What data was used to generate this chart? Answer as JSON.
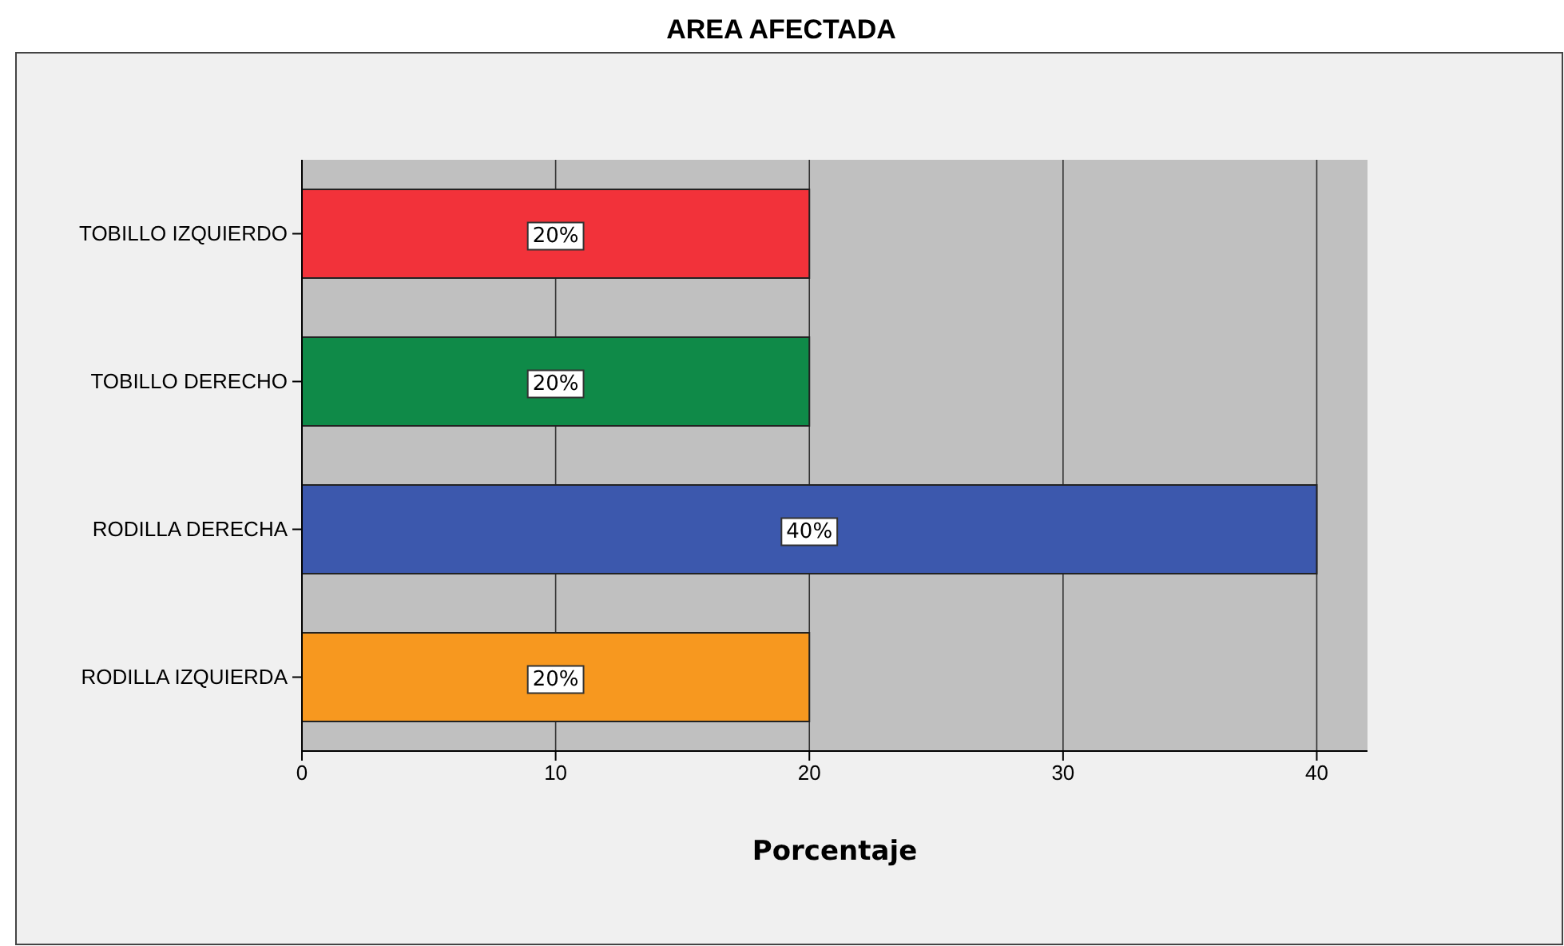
{
  "chart_data": {
    "type": "bar",
    "orientation": "horizontal",
    "title": "AREA AFECTADA",
    "xlabel": "Porcentaje",
    "categories": [
      "TOBILLO IZQUIERDO",
      "TOBILLO DERECHO",
      "RODILLA DERECHA",
      "RODILLA IZQUIERDA"
    ],
    "values": [
      20,
      20,
      40,
      20
    ],
    "colors": [
      "#f2323a",
      "#0f8a48",
      "#3c58ad",
      "#f7981f"
    ],
    "value_labels": [
      "20%",
      "20%",
      "40%",
      "20%"
    ],
    "xlim": [
      0,
      42
    ],
    "xticks": [
      0,
      10,
      20,
      30,
      40
    ],
    "grid": "x"
  }
}
